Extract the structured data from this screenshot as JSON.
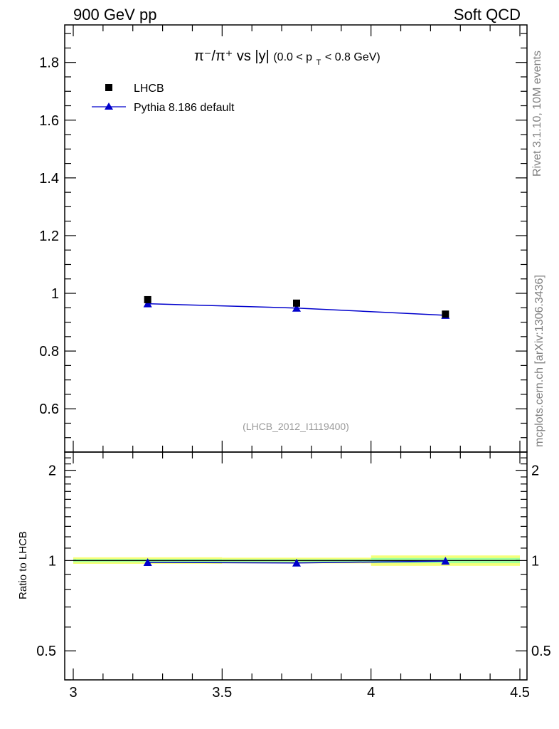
{
  "header": {
    "left": "900 GeV pp",
    "right": "Soft QCD"
  },
  "side_labels": {
    "top": "Rivet 3.1.10,  10M events",
    "bottom": "mcplots.cern.ch [arXiv:1306.3436]"
  },
  "colors": {
    "data": "#000000",
    "mc": "#0000cc",
    "band_outer": "#f5ff7a",
    "band_inner": "#9dff9d"
  },
  "chart_data": [
    {
      "type": "scatter",
      "title_parts": {
        "quantity": "π⁻/π⁺ vs |y|",
        "cut_open": "(0.0 < p",
        "cut_sub": "T",
        "cut_close": " < 0.8 GeV)"
      },
      "watermark": "(LHCB_2012_I1119400)",
      "xlim": [
        3.0,
        4.5
      ],
      "ylim": [
        0.45,
        1.93
      ],
      "yticks": [
        0.6,
        0.8,
        1.0,
        1.2,
        1.4,
        1.6,
        1.8
      ],
      "ytick_labels": [
        "0.6",
        "0.8",
        "1",
        "1.2",
        "1.4",
        "1.6",
        "1.8"
      ],
      "legend_position": "top-left",
      "series": [
        {
          "name": "LHCB",
          "marker": "square",
          "x": [
            3.25,
            3.75,
            4.25
          ],
          "y": [
            0.978,
            0.966,
            0.928
          ]
        },
        {
          "name": "Pythia 8.186 default",
          "marker": "triangle",
          "line": true,
          "x": [
            3.25,
            3.75,
            4.25
          ],
          "y": [
            0.964,
            0.949,
            0.924
          ]
        }
      ]
    },
    {
      "type": "line",
      "ylabel": "Ratio to LHCB",
      "xlim": [
        3.0,
        4.5
      ],
      "ylim": [
        0.4,
        2.3
      ],
      "yscale": "log",
      "yticks": [
        0.5,
        1,
        2
      ],
      "ytick_labels": [
        "0.5",
        "1",
        "2"
      ],
      "xticks": [
        3.0,
        3.5,
        4.0,
        4.5
      ],
      "xtick_labels": [
        "3",
        "3.5",
        "4",
        "4.5"
      ],
      "reference_line": 1.0,
      "bands": [
        {
          "x_range": [
            3.0,
            3.5
          ],
          "outer": [
            0.975,
            1.025
          ],
          "inner": [
            0.988,
            1.012
          ]
        },
        {
          "x_range": [
            3.5,
            4.0
          ],
          "outer": [
            0.978,
            1.022
          ],
          "inner": [
            0.99,
            1.01
          ]
        },
        {
          "x_range": [
            4.0,
            4.5
          ],
          "outer": [
            0.96,
            1.04
          ],
          "inner": [
            0.98,
            1.02
          ]
        }
      ],
      "series": [
        {
          "name": "Pythia 8.186 default",
          "x": [
            3.25,
            3.75,
            4.25
          ],
          "y": [
            0.986,
            0.982,
            0.996
          ]
        }
      ]
    }
  ]
}
